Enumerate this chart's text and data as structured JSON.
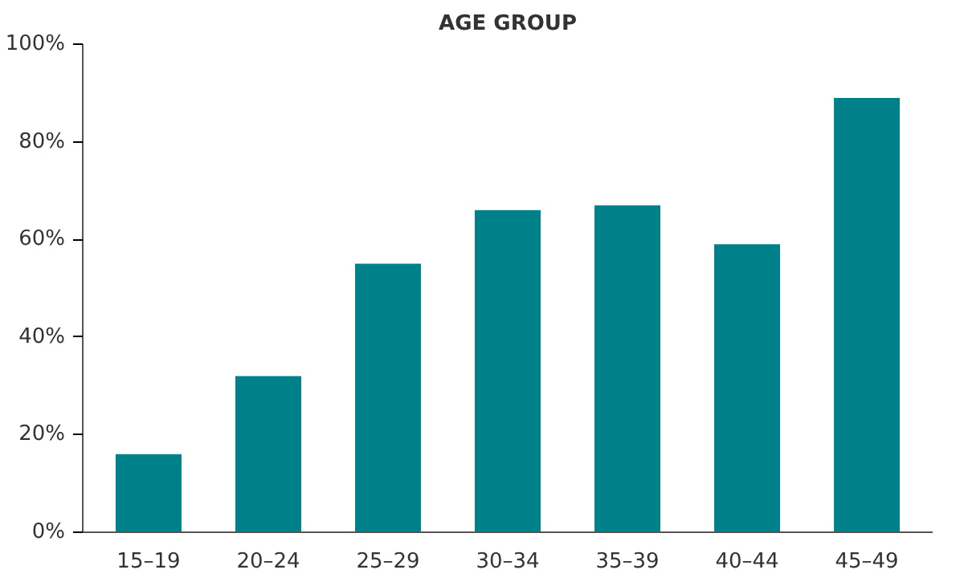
{
  "chart_data": {
    "type": "bar",
    "title": "AGE GROUP",
    "categories": [
      "15–19",
      "20–24",
      "25–29",
      "30–34",
      "35–39",
      "40–44",
      "45–49"
    ],
    "values": [
      16,
      32,
      55,
      66,
      67,
      59,
      89
    ],
    "color": "#00818a",
    "ylim": [
      0,
      100
    ],
    "yticks": [
      {
        "value": 0,
        "label": "0%"
      },
      {
        "value": 20,
        "label": "20%"
      },
      {
        "value": 40,
        "label": "40%"
      },
      {
        "value": 60,
        "label": "60%"
      },
      {
        "value": 80,
        "label": "80%"
      },
      {
        "value": 100,
        "label": "100%"
      }
    ],
    "grid": false
  }
}
